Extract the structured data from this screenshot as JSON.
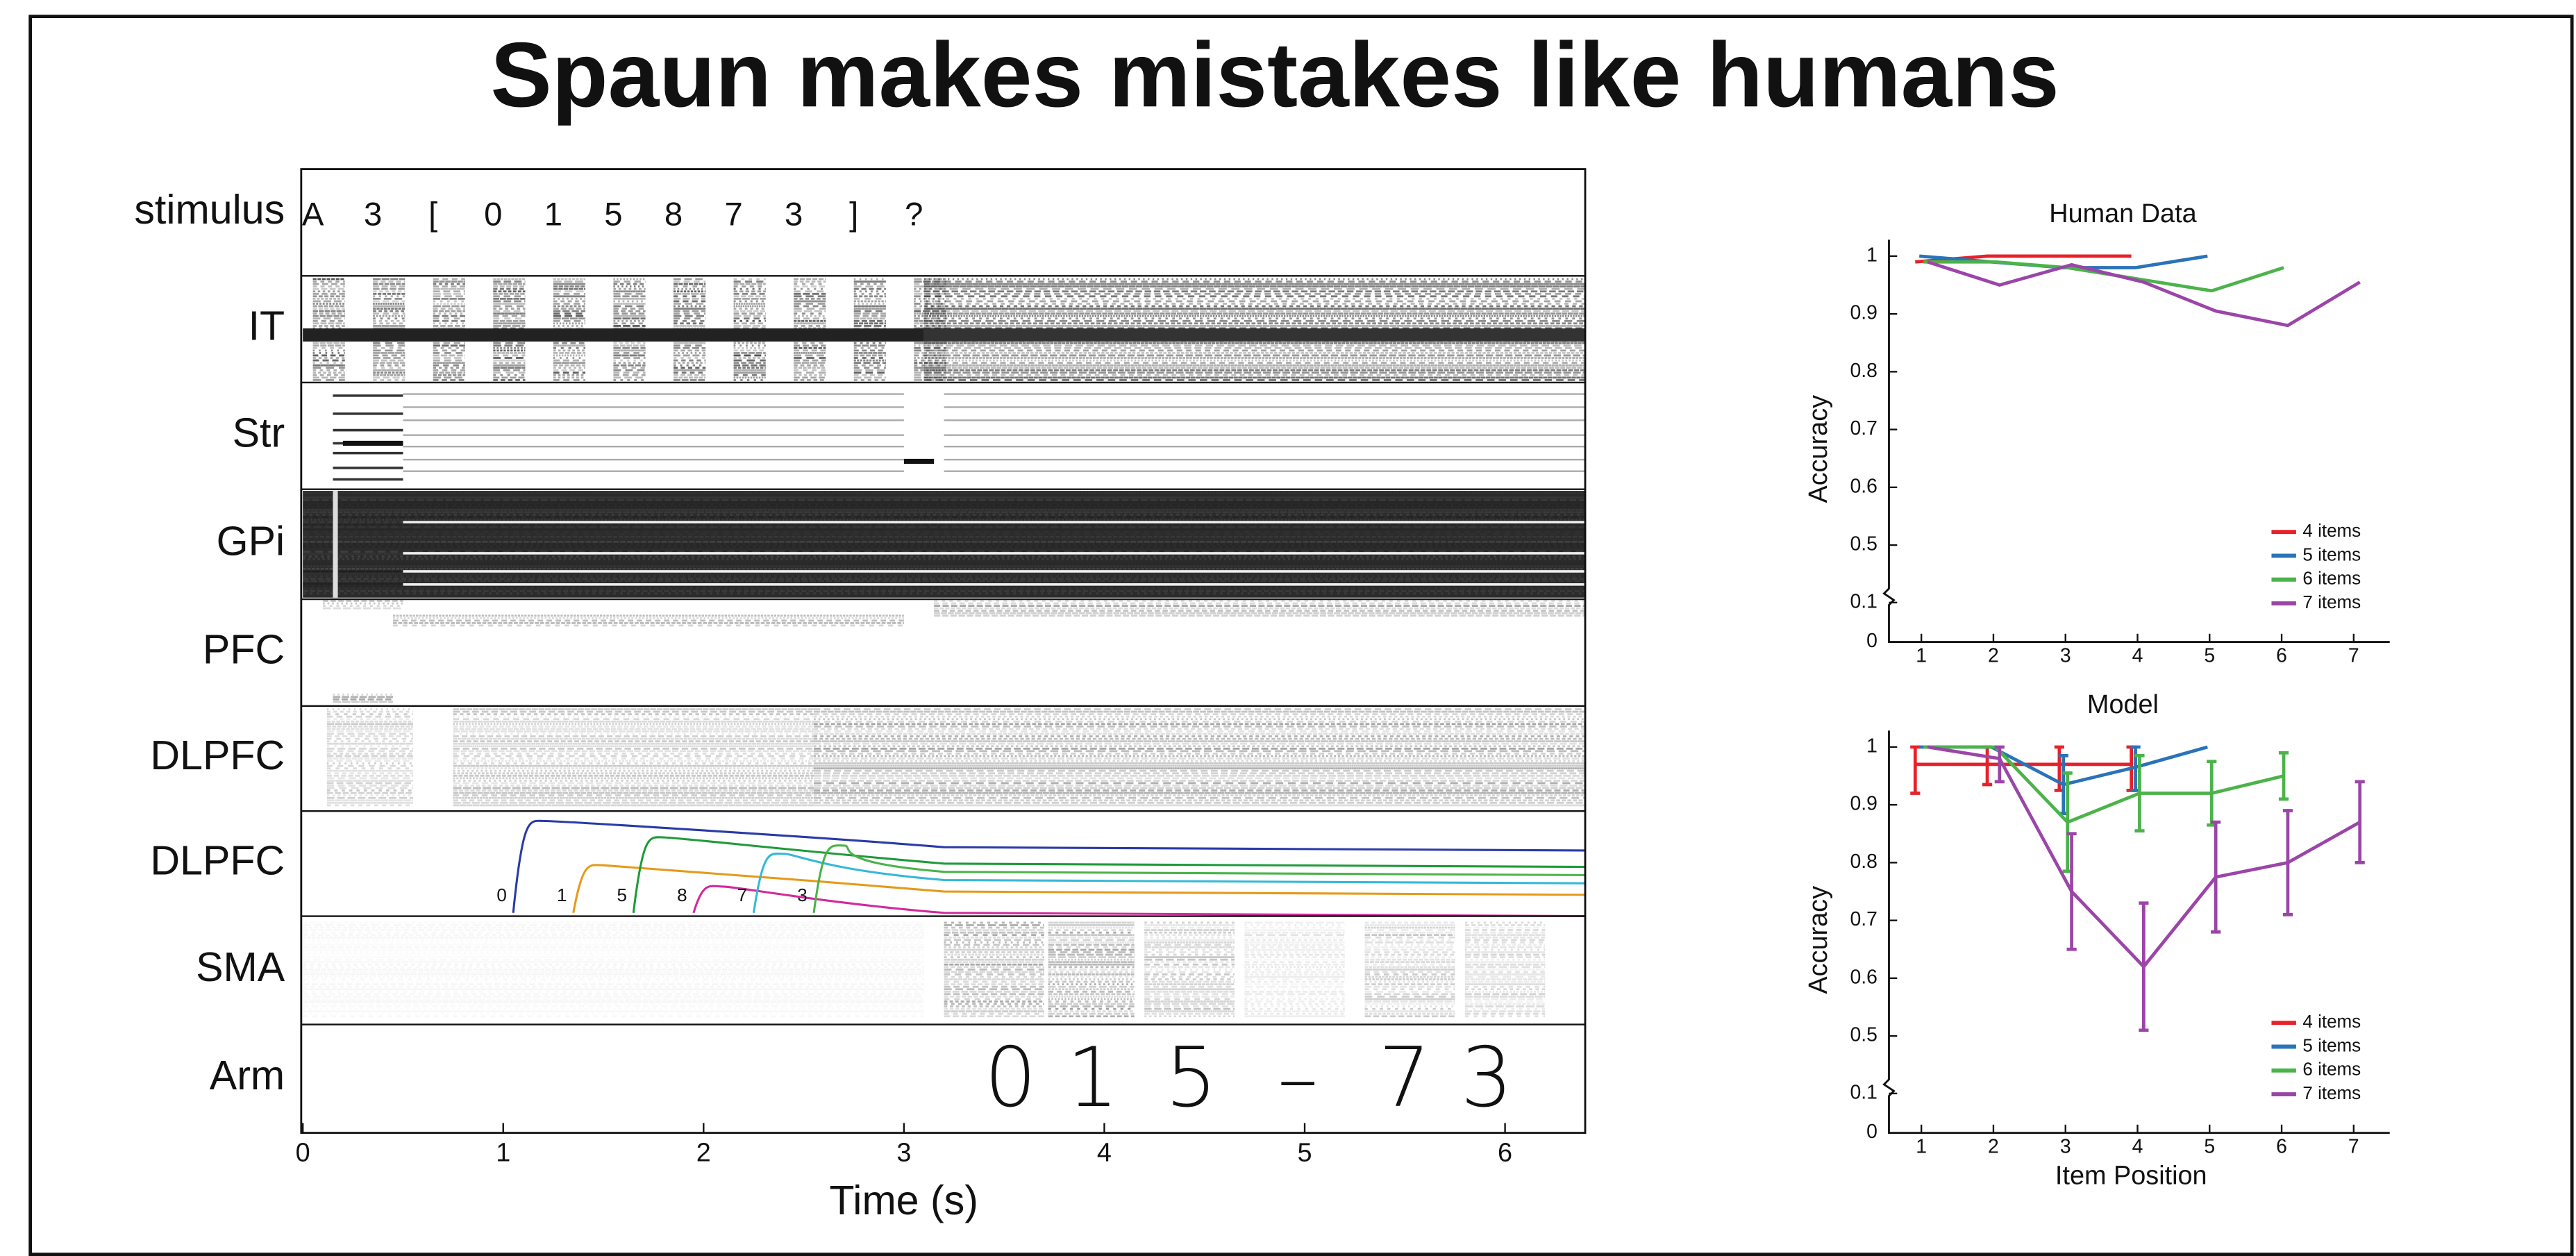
{
  "title": "Spaun makes mistakes like humans",
  "chart_data": [
    {
      "type": "raster",
      "stimulus": [
        "A",
        "3",
        "[",
        "0",
        "1",
        "5",
        "8",
        "7",
        "3",
        "]",
        "?"
      ],
      "rows": [
        "stimulus",
        "IT",
        "Str",
        "GPi",
        "PFC",
        "DLPFC",
        "DLPFC",
        "SMA",
        "Arm"
      ],
      "trace_labels": [
        "0",
        "1",
        "5",
        "8",
        "7",
        "3"
      ],
      "arm_output": [
        "0",
        "1",
        "5",
        "–",
        "7",
        "3"
      ],
      "x_label": "Time (s)",
      "xlim": [
        0,
        6.4
      ],
      "xticks": [
        0,
        1,
        2,
        3,
        4,
        5,
        6
      ]
    },
    {
      "type": "line",
      "title": "Human Data",
      "y_label": "Accuracy",
      "x": [
        1,
        2,
        3,
        4,
        5,
        6,
        7
      ],
      "xlim": [
        0.55,
        7.5
      ],
      "xticks": [
        1,
        2,
        3,
        4,
        5,
        6,
        7
      ],
      "ylim": [
        0,
        1
      ],
      "yticks": [
        0,
        0.1,
        0.5,
        0.6,
        0.7,
        0.8,
        0.9,
        1
      ],
      "axis_break": [
        0.1,
        0.5
      ],
      "legend": "lower right",
      "series": [
        {
          "name": "4 items",
          "color": "#e8202a",
          "values": [
            0.99,
            1.0,
            1.0,
            1.0,
            null,
            null,
            null
          ]
        },
        {
          "name": "5 items",
          "color": "#2a73b8",
          "values": [
            1.0,
            0.99,
            0.98,
            0.98,
            1.0,
            null,
            null
          ]
        },
        {
          "name": "6 items",
          "color": "#4bb34a",
          "values": [
            0.99,
            0.99,
            0.98,
            0.96,
            0.94,
            0.98,
            null
          ]
        },
        {
          "name": "7 items",
          "color": "#9b45a8",
          "values": [
            0.99,
            0.95,
            0.985,
            0.955,
            0.905,
            0.88,
            0.955
          ]
        }
      ]
    },
    {
      "type": "line",
      "title": "Model",
      "y_label": "Accuracy",
      "x_label": "Item Position",
      "x": [
        1,
        2,
        3,
        4,
        5,
        6,
        7
      ],
      "xlim": [
        0.55,
        7.5
      ],
      "xticks": [
        1,
        2,
        3,
        4,
        5,
        6,
        7
      ],
      "ylim": [
        0,
        1
      ],
      "yticks": [
        0,
        0.1,
        0.5,
        0.6,
        0.7,
        0.8,
        0.9,
        1
      ],
      "axis_break": [
        0.1,
        0.5
      ],
      "legend": "lower right",
      "series": [
        {
          "name": "4 items",
          "color": "#e8202a",
          "values": [
            0.97,
            0.97,
            0.97,
            0.97,
            null,
            null,
            null
          ],
          "errors": [
            0.05,
            0.035,
            0.045,
            0.045,
            null,
            null,
            null
          ]
        },
        {
          "name": "5 items",
          "color": "#2a73b8",
          "values": [
            1.0,
            1.0,
            0.935,
            0.965,
            1.0,
            null,
            null
          ],
          "errors": [
            null,
            null,
            0.05,
            0.04,
            null,
            null,
            null
          ]
        },
        {
          "name": "6 items",
          "color": "#4bb34a",
          "values": [
            1.0,
            1.0,
            0.87,
            0.92,
            0.92,
            0.95,
            null
          ],
          "errors": [
            null,
            null,
            0.085,
            0.065,
            0.055,
            0.04,
            null
          ]
        },
        {
          "name": "7 items",
          "color": "#9b45a8",
          "values": [
            1.0,
            0.98,
            0.75,
            0.62,
            0.775,
            0.8,
            0.87
          ],
          "errors": [
            null,
            0.04,
            0.1,
            0.11,
            0.095,
            0.09,
            0.07
          ]
        }
      ]
    }
  ]
}
